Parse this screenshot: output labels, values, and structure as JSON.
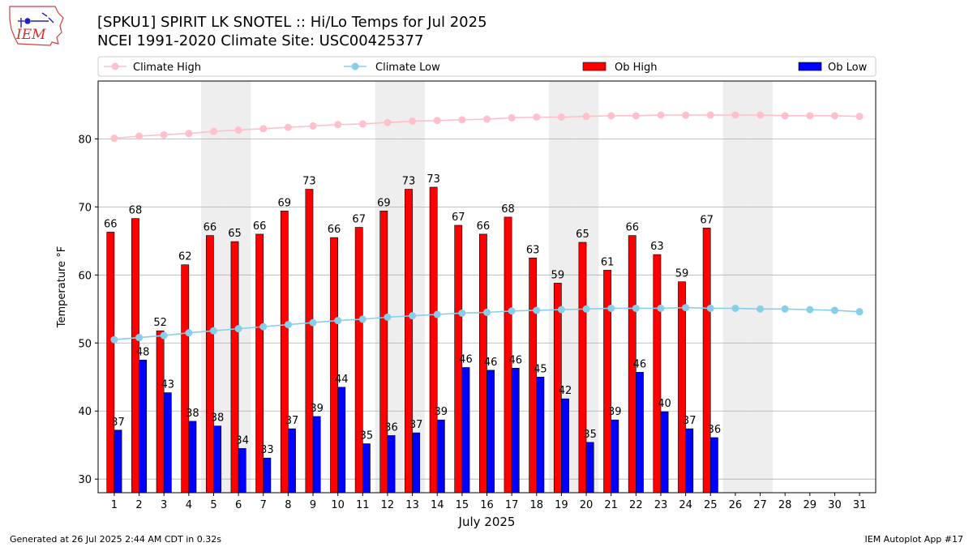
{
  "header": {
    "title_line1": "[SPKU1] SPIRIT LK SNOTEL :: Hi/Lo Temps for Jul 2025",
    "title_line2": "NCEI 1991-2020 Climate Site: USC00425377",
    "logo_text": "IEM",
    "logo_icon": "iem-iowa-logo-icon"
  },
  "footer": {
    "left": "Generated at 26 Jul 2025 2:44 AM CDT in 0.32s",
    "right": "IEM Autoplot App #17"
  },
  "colors": {
    "ob_high": "#ff0000",
    "ob_low": "#0000ff",
    "climate_high": "#ffc0cb",
    "climate_low": "#87ceeb",
    "weekend_shade": "#eeeeee",
    "grid": "#b0b0b0"
  },
  "chart_data": {
    "type": "bar",
    "xlabel": "July 2025",
    "ylabel": "Temperature °F",
    "ylim": [
      28,
      88.5
    ],
    "yticks": [
      30,
      40,
      50,
      60,
      70,
      80
    ],
    "grid": "horizontal",
    "legend_placement": "top",
    "categories": [
      "1",
      "2",
      "3",
      "4",
      "5",
      "6",
      "7",
      "8",
      "9",
      "10",
      "11",
      "12",
      "13",
      "14",
      "15",
      "16",
      "17",
      "18",
      "19",
      "20",
      "21",
      "22",
      "23",
      "24",
      "25",
      "26",
      "27",
      "28",
      "29",
      "30",
      "31"
    ],
    "shaded_days": [
      5,
      6,
      12,
      13,
      19,
      20,
      26,
      27
    ],
    "series": [
      {
        "name": "Climate High",
        "kind": "line",
        "values": [
          80.1,
          80.4,
          80.6,
          80.8,
          81.1,
          81.3,
          81.5,
          81.7,
          81.9,
          82.1,
          82.2,
          82.4,
          82.6,
          82.7,
          82.8,
          82.9,
          83.1,
          83.2,
          83.2,
          83.3,
          83.4,
          83.4,
          83.5,
          83.5,
          83.5,
          83.5,
          83.5,
          83.4,
          83.4,
          83.4,
          83.3
        ]
      },
      {
        "name": "Climate Low",
        "kind": "line",
        "values": [
          50.5,
          50.8,
          51.1,
          51.5,
          51.8,
          52.1,
          52.4,
          52.7,
          53.0,
          53.3,
          53.5,
          53.8,
          54.0,
          54.2,
          54.4,
          54.5,
          54.7,
          54.8,
          54.9,
          55.0,
          55.1,
          55.1,
          55.1,
          55.2,
          55.1,
          55.1,
          55.0,
          55.0,
          54.9,
          54.8,
          54.6
        ]
      },
      {
        "name": "Ob High",
        "kind": "bar",
        "values": [
          66.3,
          68.3,
          51.8,
          61.5,
          65.8,
          64.9,
          66.0,
          69.4,
          72.6,
          65.5,
          67.0,
          69.4,
          72.6,
          72.9,
          67.3,
          66.0,
          68.5,
          62.5,
          58.8,
          64.8,
          60.7,
          65.8,
          63.0,
          59.0,
          66.9,
          null,
          null,
          null,
          null,
          null,
          null
        ],
        "labels": [
          "66",
          "68",
          "52",
          "62",
          "66",
          "65",
          "66",
          "69",
          "73",
          "66",
          "67",
          "69",
          "73",
          "73",
          "67",
          "66",
          "68",
          "63",
          "59",
          "65",
          "61",
          "66",
          "63",
          "59",
          "67",
          "",
          "",
          "",
          "",
          "",
          ""
        ]
      },
      {
        "name": "Ob Low",
        "kind": "bar",
        "values": [
          37.2,
          47.5,
          42.7,
          38.5,
          37.8,
          34.5,
          33.1,
          37.4,
          39.2,
          43.5,
          35.2,
          36.4,
          36.8,
          38.7,
          46.4,
          46.0,
          46.3,
          45.0,
          41.8,
          35.4,
          38.7,
          45.7,
          39.9,
          37.4,
          36.1,
          null,
          null,
          null,
          null,
          null,
          null
        ],
        "labels": [
          "37",
          "48",
          "43",
          "38",
          "38",
          "34",
          "33",
          "37",
          "39",
          "44",
          "35",
          "36",
          "37",
          "39",
          "46",
          "46",
          "46",
          "45",
          "42",
          "35",
          "39",
          "46",
          "40",
          "37",
          "36",
          "",
          "",
          "",
          "",
          "",
          ""
        ]
      }
    ]
  }
}
